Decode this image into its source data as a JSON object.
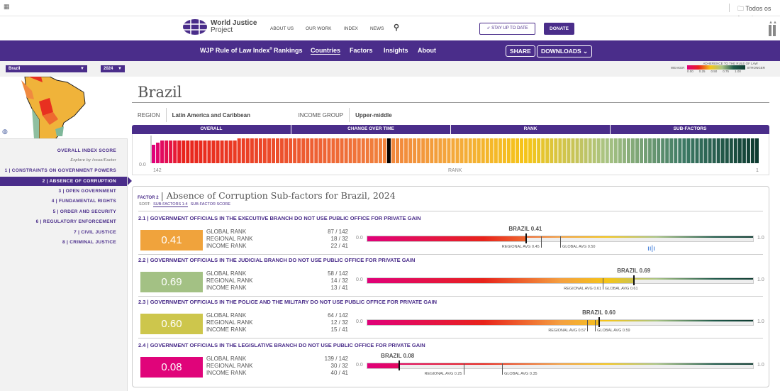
{
  "browser": {
    "apps_icon": "apps-grid-icon",
    "bookmarks": "Todos os favoritos"
  },
  "header": {
    "logo_line1": "World Justice",
    "logo_line2": "Project",
    "links": [
      "ABOUT US",
      "OUR WORK",
      "INDEX",
      "NEWS"
    ],
    "stay_label": "STAY UP TO DATE",
    "donate_label": "DONATE"
  },
  "nav": {
    "brand": "WJP Rule of Law Index",
    "brand_sup": "®",
    "items": [
      "Rankings",
      "Countries",
      "Factors",
      "Insights",
      "About"
    ],
    "active": "Countries",
    "share": "SHARE",
    "downloads": "DOWNLOADS"
  },
  "filters": {
    "country": "Brazil",
    "year": "2024"
  },
  "legend": {
    "title": "ADHERENCE TO THE RULE OF LAW",
    "weaker": "WEAKER",
    "stronger": "STRONGER",
    "ticks": [
      "0.00",
      "0.25",
      "0.50",
      "0.75",
      "1.00"
    ]
  },
  "sidebar": {
    "overall": "OVERALL INDEX SCORE",
    "explore": "Explore by Issue/Factor",
    "factors": [
      "1 | CONSTRAINTS ON GOVERNMENT POWERS",
      "2 | ABSENCE OF CORRUPTION",
      "3 | OPEN GOVERNMENT",
      "4 | FUNDAMENTAL RIGHTS",
      "5 | ORDER AND SECURITY",
      "6 | REGULATORY ENFORCEMENT",
      "7 | CIVIL JUSTICE",
      "8 | CRIMINAL JUSTICE"
    ],
    "active_index": 1
  },
  "country": {
    "name": "Brazil",
    "region_label": "REGION",
    "region": "Latin America and Caribbean",
    "income_label": "INCOME GROUP",
    "income": "Upper-middle"
  },
  "tabs": [
    "OVERALL",
    "CHANGE OVER TIME",
    "RANK",
    "SUB-FACTORS"
  ],
  "rank_chart": {
    "y0": "0.0",
    "left": "142",
    "center": "RANK",
    "right": "1",
    "count": 142,
    "highlight_rank": 87
  },
  "factor": {
    "prefix": "FACTOR 2",
    "title": "Absence of Corruption Sub-factors for Brazil, 2024",
    "sort_label": "SORT:",
    "sort_options": [
      "SUB-FACTORS 1-4",
      "SUB-FACTOR SCORE"
    ],
    "rank_labels": [
      "GLOBAL RANK",
      "REGIONAL RANK",
      "INCOME RANK"
    ],
    "min": "0.0",
    "max": "1.0",
    "subfactors": [
      {
        "title": "2.1 | GOVERNMENT OFFICIALS IN THE EXECUTIVE BRANCH DO NOT USE PUBLIC OFFICE FOR PRIVATE GAIN",
        "score": 0.41,
        "score_text": "0.41",
        "color": "#f0a33c",
        "ranks": [
          "87 / 142",
          "18 / 32",
          "22 / 41"
        ],
        "brazil": "BRAZIL 0.41",
        "regional": 0.45,
        "regional_text": "REGIONAL AVG 0.45",
        "global": 0.5,
        "global_text": "GLOBAL AVG 0.50"
      },
      {
        "title": "2.2 | GOVERNMENT OFFICIALS IN THE JUDICIAL BRANCH DO NOT USE PUBLIC OFFICE FOR PRIVATE GAIN",
        "score": 0.69,
        "score_text": "0.69",
        "color": "#a3c184",
        "ranks": [
          "58 / 142",
          "14 / 32",
          "13 / 41"
        ],
        "brazil": "BRAZIL 0.69",
        "regional": 0.61,
        "regional_text": "REGIONAL AVG 0.61",
        "global": 0.61,
        "global_text": "GLOBAL AVG 0.61"
      },
      {
        "title": "2.3 | GOVERNMENT OFFICIALS IN THE POLICE AND THE MILITARY DO NOT USE PUBLIC OFFICE FOR PRIVATE GAIN",
        "score": 0.6,
        "score_text": "0.60",
        "color": "#cdc64c",
        "ranks": [
          "64 / 142",
          "12 / 32",
          "15 / 41"
        ],
        "brazil": "BRAZIL 0.60",
        "regional": 0.57,
        "regional_text": "REGIONAL AVG 0.57",
        "global": 0.59,
        "global_text": "GLOBAL AVG 0.59"
      },
      {
        "title": "2.4 | GOVERNMENT OFFICIALS IN THE LEGISLATIVE BRANCH DO NOT USE PUBLIC OFFICE FOR PRIVATE GAIN",
        "score": 0.08,
        "score_text": "0.08",
        "color": "#e0047a",
        "ranks": [
          "139 / 142",
          "30 / 32",
          "40 / 41"
        ],
        "brazil": "BRAZIL 0.08",
        "regional": 0.25,
        "regional_text": "REGIONAL AVG 0.25",
        "global": 0.35,
        "global_text": "GLOBAL AVG 0.35"
      }
    ]
  },
  "colors": {
    "brand": "#4a2d8a",
    "scale": [
      "#e0007a",
      "#e8231b",
      "#f4a040",
      "#f5c518",
      "#a9c484",
      "#1f5a4a",
      "#0d3b30"
    ]
  }
}
